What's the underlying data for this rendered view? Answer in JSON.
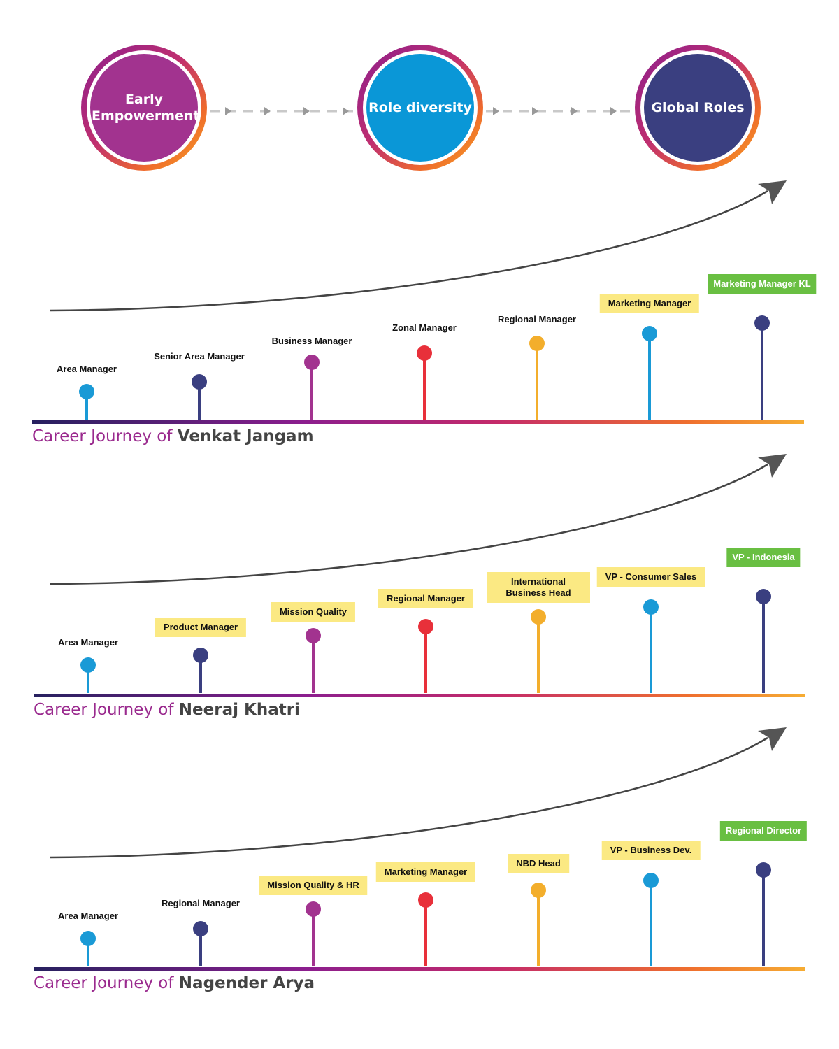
{
  "top_circles": [
    {
      "label": "Early Empowerment",
      "color": "#a2338f"
    },
    {
      "label": "Role diversity",
      "color": "#0a97d7"
    },
    {
      "label": "Global Roles",
      "color": "#3a3f80"
    }
  ],
  "journeys": [
    {
      "prefix": "Career Journey of ",
      "name": "Venkat Jangam",
      "stages": [
        {
          "label": "Area Manager",
          "style": "plain"
        },
        {
          "label": "Senior Area Manager",
          "style": "plain"
        },
        {
          "label": "Business Manager",
          "style": "plain"
        },
        {
          "label": "Zonal Manager",
          "style": "plain"
        },
        {
          "label": "Regional Manager",
          "style": "plain"
        },
        {
          "label": "Marketing Manager",
          "style": "highlight"
        },
        {
          "label": "Marketing Manager KL",
          "style": "green"
        }
      ]
    },
    {
      "prefix": "Career Journey of ",
      "name": "Neeraj Khatri",
      "stages": [
        {
          "label": "Area Manager",
          "style": "plain"
        },
        {
          "label": "Product Manager",
          "style": "highlight"
        },
        {
          "label": "Mission Quality",
          "style": "highlight"
        },
        {
          "label": "Regional Manager",
          "style": "highlight"
        },
        {
          "label": "International Business Head",
          "style": "highlight"
        },
        {
          "label": "VP - Consumer Sales",
          "style": "highlight"
        },
        {
          "label": "VP - Indonesia",
          "style": "green"
        }
      ]
    },
    {
      "prefix": "Career Journey of ",
      "name": "Nagender Arya",
      "stages": [
        {
          "label": "Area Manager",
          "style": "plain"
        },
        {
          "label": "Regional Manager",
          "style": "plain"
        },
        {
          "label": "Mission Quality & HR",
          "style": "highlight"
        },
        {
          "label": "Marketing Manager",
          "style": "highlight"
        },
        {
          "label": "NBD Head",
          "style": "highlight"
        },
        {
          "label": "VP - Business Dev.",
          "style": "highlight"
        },
        {
          "label": "Regional Director",
          "style": "green"
        }
      ]
    }
  ],
  "stage_colors": [
    "#1a9ad6",
    "#3a3f80",
    "#a2338f",
    "#e8303a",
    "#f3ae2c",
    "#1a9ad6",
    "#3a3f80"
  ]
}
